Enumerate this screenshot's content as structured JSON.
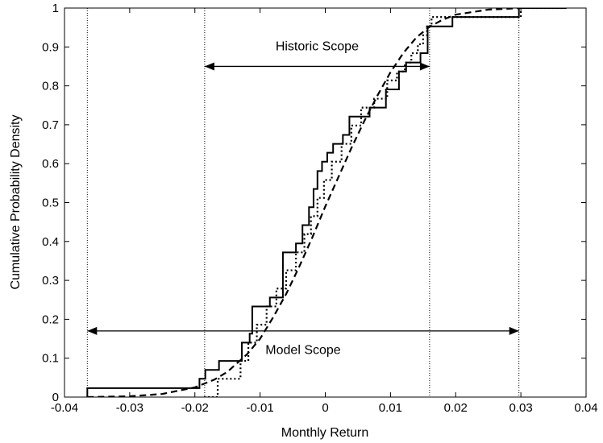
{
  "chart_data": {
    "type": "line",
    "title": "",
    "xlabel": "Monthly Return",
    "ylabel": "Cumulative Probability Density",
    "xlim": [
      -0.04,
      0.04
    ],
    "ylim": [
      0,
      1
    ],
    "xticks": [
      "-0.04",
      "-0.03",
      "-0.02",
      "-0.01",
      "0",
      "0.01",
      "0.02",
      "0.03",
      "0.04"
    ],
    "yticks": [
      "0",
      "0.1",
      "0.2",
      "0.3",
      "0.4",
      "0.5",
      "0.6",
      "0.7",
      "0.8",
      "0.9",
      "1"
    ],
    "grid": false,
    "series": [
      {
        "style": "solid",
        "step": true,
        "x": [
          -0.0365,
          -0.0193,
          -0.0184,
          -0.0163,
          -0.0128,
          -0.0116,
          -0.0112,
          -0.0098,
          -0.0085,
          -0.0073,
          -0.0065,
          -0.0055,
          -0.0045,
          -0.0035,
          -0.0025,
          -0.0018,
          -0.0012,
          -0.0005,
          0.0003,
          0.0012,
          0.0027,
          0.0037,
          0.0052,
          0.0068,
          0.0093,
          0.0113,
          0.0124,
          0.0137,
          0.0146,
          0.0157,
          0.0163,
          0.017,
          0.0195,
          0.0232,
          0.0297,
          0.037
        ],
        "y": [
          0.023,
          0.047,
          0.07,
          0.093,
          0.14,
          0.163,
          0.233,
          0.233,
          0.256,
          0.256,
          0.372,
          0.372,
          0.395,
          0.442,
          0.488,
          0.535,
          0.581,
          0.605,
          0.628,
          0.651,
          0.674,
          0.721,
          0.721,
          0.744,
          0.791,
          0.837,
          0.86,
          0.86,
          0.884,
          0.953,
          0.953,
          0.953,
          0.977,
          0.977,
          1.0,
          1.0
        ]
      },
      {
        "style": "dotted",
        "step": true,
        "x": [
          -0.0186,
          -0.0165,
          -0.013,
          -0.0118,
          -0.0105,
          -0.009,
          -0.0075,
          -0.006,
          -0.0045,
          -0.0032,
          -0.0022,
          -0.0012,
          -0.0002,
          0.001,
          0.0025,
          0.004,
          0.0055,
          0.0075,
          0.0095,
          0.011,
          0.0122,
          0.0132,
          0.0142,
          0.015,
          0.0156,
          0.0163,
          0.02,
          0.03,
          0.037
        ],
        "y": [
          0.0,
          0.047,
          0.093,
          0.14,
          0.186,
          0.233,
          0.279,
          0.326,
          0.372,
          0.419,
          0.465,
          0.512,
          0.558,
          0.605,
          0.651,
          0.698,
          0.744,
          0.767,
          0.814,
          0.837,
          0.86,
          0.884,
          0.907,
          0.93,
          0.953,
          0.977,
          0.977,
          1.0,
          1.0
        ]
      },
      {
        "style": "dashed",
        "step": false,
        "x": [
          -0.0365,
          -0.03,
          -0.025,
          -0.02,
          -0.017,
          -0.015,
          -0.012,
          -0.01,
          -0.008,
          -0.006,
          -0.004,
          -0.002,
          0.0,
          0.002,
          0.004,
          0.006,
          0.008,
          0.01,
          0.012,
          0.014,
          0.016,
          0.018,
          0.02,
          0.025,
          0.03
        ],
        "y": [
          0.0,
          0.002,
          0.008,
          0.025,
          0.045,
          0.065,
          0.11,
          0.15,
          0.205,
          0.265,
          0.335,
          0.41,
          0.49,
          0.565,
          0.64,
          0.71,
          0.775,
          0.835,
          0.885,
          0.925,
          0.952,
          0.97,
          0.983,
          0.996,
          1.0
        ]
      }
    ],
    "vertical_lines": [
      {
        "x": -0.0365,
        "style": "dotted"
      },
      {
        "x": -0.0185,
        "style": "dotted"
      },
      {
        "x": 0.016,
        "style": "dotted"
      },
      {
        "x": 0.0297,
        "style": "dotted"
      }
    ],
    "annotations": [
      {
        "label": "Historic Scope",
        "x_from": -0.0185,
        "x_to": 0.016,
        "y_arrow": 0.85,
        "y_text": 0.9
      },
      {
        "label": "Model Scope",
        "x_from": -0.0365,
        "x_to": 0.0297,
        "y_arrow": 0.17,
        "y_text": 0.12
      }
    ]
  }
}
